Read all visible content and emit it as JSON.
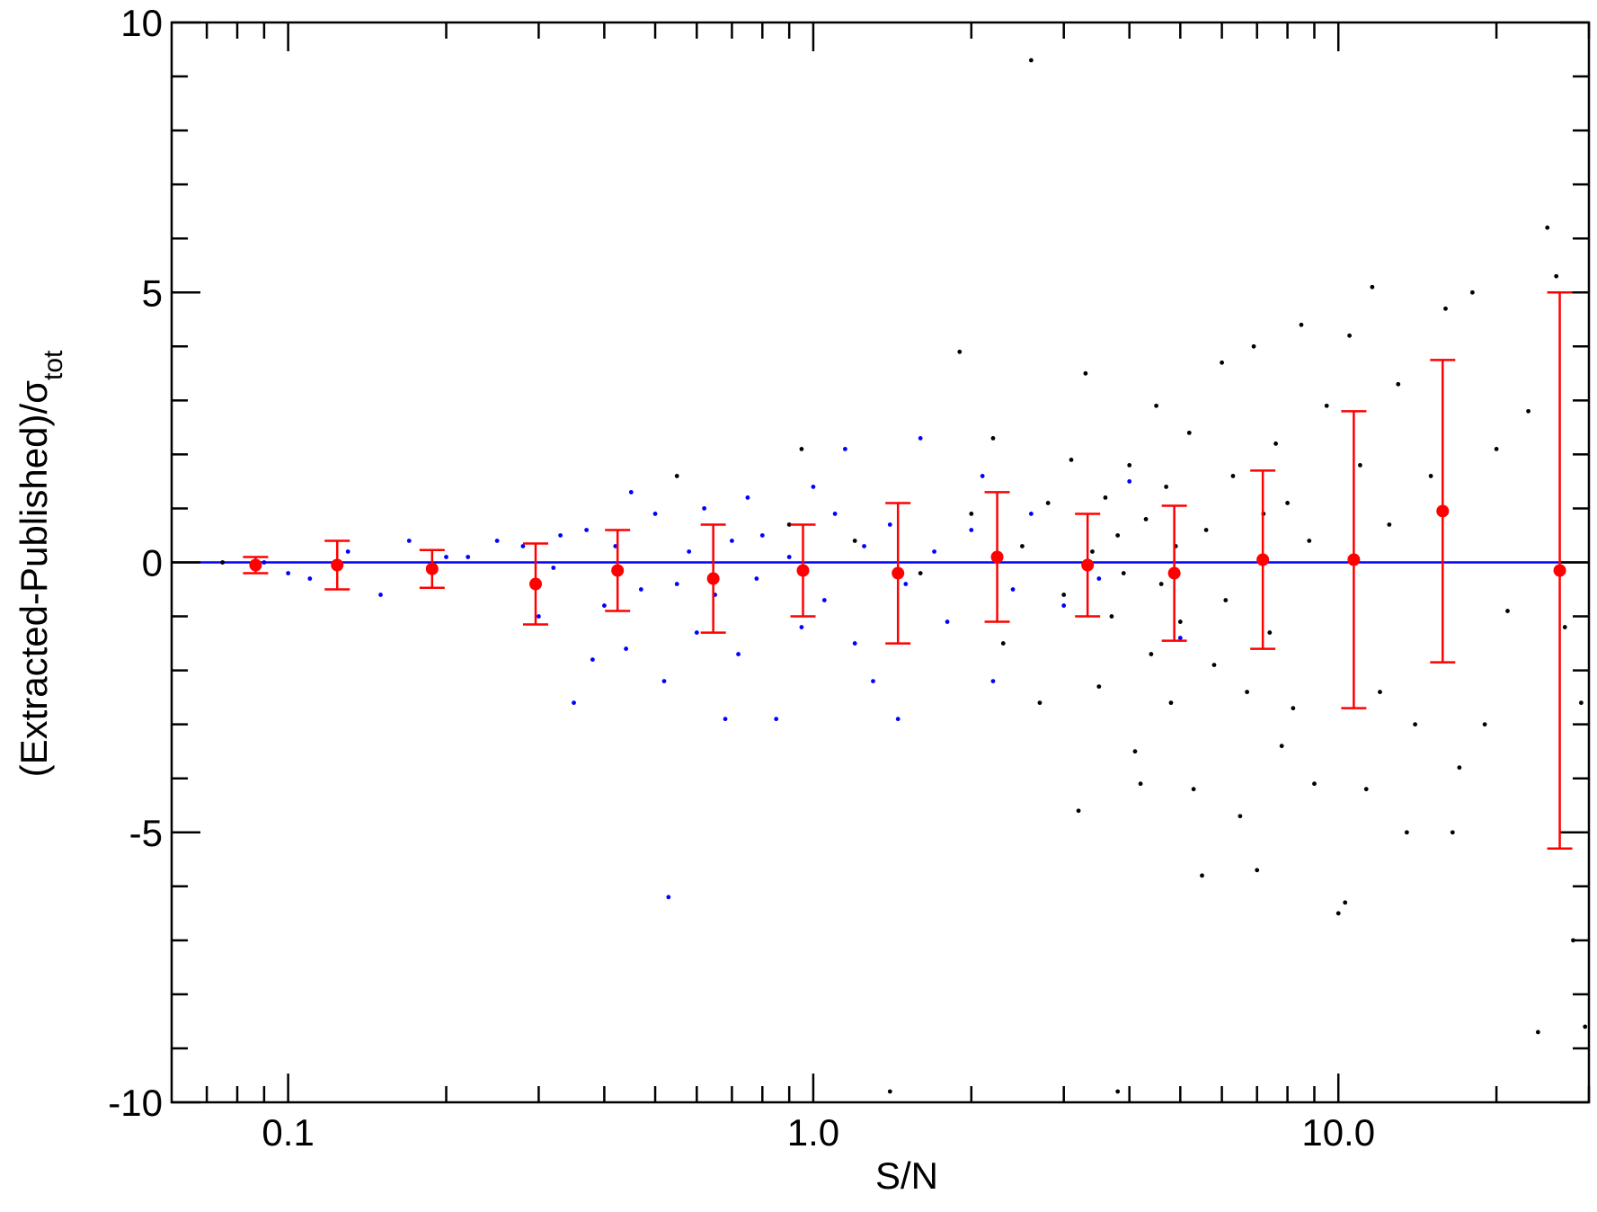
{
  "chart_data": {
    "type": "scatter",
    "xlabel": "S/N",
    "ylabel": "(Extracted-Published)/σ",
    "ylabel_subscript": "tot",
    "xscale": "log",
    "xlim": [
      0.06,
      30
    ],
    "ylim": [
      -10,
      10
    ],
    "xticks": [
      0.1,
      {
        "value": 1,
        "label": "1.0"
      },
      {
        "value": 10,
        "label": "10.0"
      }
    ],
    "xminor_ticks": [
      0.07,
      0.08,
      0.09,
      0.2,
      0.3,
      0.4,
      0.5,
      0.6,
      0.7,
      0.8,
      0.9,
      2,
      3,
      4,
      5,
      6,
      7,
      8,
      9,
      20,
      30
    ],
    "yticks": [
      -10,
      -5,
      0,
      5,
      10
    ],
    "yminor_ticks": [
      -9,
      -8,
      -7,
      -6,
      -4,
      -3,
      -2,
      -1,
      1,
      2,
      3,
      4,
      6,
      7,
      8,
      9
    ],
    "reference_line": {
      "value": 0,
      "color": "#0000ff"
    },
    "series": [
      {
        "color": "#0000ff",
        "x": [
          0.1,
          0.11,
          0.13,
          0.15,
          0.2,
          0.25,
          0.28,
          0.3,
          0.33,
          0.35,
          0.37,
          0.38,
          0.4,
          0.42,
          0.45,
          0.47,
          0.5,
          0.52,
          0.53,
          0.55,
          0.58,
          0.6,
          0.62,
          0.65,
          0.68,
          0.7,
          0.72,
          0.75,
          0.78,
          0.8,
          0.85,
          0.9,
          0.95,
          1.0,
          1.05,
          1.1,
          1.15,
          1.2,
          1.25,
          1.3,
          1.4,
          1.45,
          1.5,
          1.6,
          1.7,
          1.8,
          2.0,
          2.1,
          2.2,
          2.4,
          2.6,
          3.0,
          3.5,
          4.0,
          5.0,
          0.09,
          0.17,
          0.22,
          0.32,
          0.44
        ],
        "y": [
          -0.2,
          -0.3,
          0.2,
          -0.6,
          0.1,
          0.4,
          0.3,
          -1.0,
          0.5,
          -2.6,
          0.6,
          -1.8,
          -0.8,
          0.3,
          1.3,
          -0.5,
          0.9,
          -2.2,
          -6.2,
          -0.4,
          0.2,
          -1.3,
          1.0,
          -0.6,
          -2.9,
          0.4,
          -1.7,
          1.2,
          -0.3,
          0.5,
          -2.9,
          0.1,
          -1.2,
          1.4,
          -0.7,
          0.9,
          2.1,
          -1.5,
          0.3,
          -2.2,
          0.7,
          -2.9,
          -0.4,
          2.3,
          0.2,
          -1.1,
          0.6,
          1.6,
          -2.2,
          -0.5,
          0.9,
          -0.8,
          -0.3,
          1.5,
          -1.4,
          0.0,
          0.4,
          0.1,
          -0.1,
          -1.6
        ]
      },
      {
        "color": "#000000",
        "x": [
          0.075,
          0.55,
          0.9,
          0.95,
          1.2,
          1.6,
          1.9,
          2.0,
          2.2,
          2.3,
          2.5,
          2.6,
          2.7,
          2.8,
          3.0,
          3.1,
          3.2,
          3.3,
          3.4,
          3.5,
          3.6,
          3.7,
          3.8,
          3.9,
          4.0,
          4.1,
          4.2,
          4.3,
          4.4,
          4.5,
          4.6,
          4.7,
          4.8,
          4.9,
          5.0,
          5.2,
          5.3,
          5.5,
          5.6,
          5.8,
          6.0,
          6.1,
          6.3,
          6.5,
          6.7,
          6.9,
          7.0,
          7.2,
          7.4,
          7.6,
          7.8,
          8.0,
          8.2,
          8.5,
          8.8,
          9.0,
          9.5,
          10.0,
          10.3,
          10.5,
          11.0,
          11.3,
          11.6,
          12.0,
          12.5,
          13.0,
          13.5,
          14.0,
          15.0,
          16.0,
          16.5,
          17.0,
          18.0,
          19.0,
          20.0,
          21.0,
          23.0,
          24.0,
          25.0,
          26.0,
          27.0,
          28.0,
          29.0,
          29.5,
          1.4,
          3.8
        ],
        "y": [
          0.0,
          1.6,
          0.7,
          2.1,
          0.4,
          -0.2,
          3.9,
          0.9,
          2.3,
          -1.5,
          0.3,
          9.3,
          -2.6,
          1.1,
          -0.6,
          1.9,
          -4.6,
          3.5,
          0.2,
          -2.3,
          1.2,
          -1.0,
          0.5,
          -0.2,
          1.8,
          -3.5,
          -4.1,
          0.8,
          -1.7,
          2.9,
          -0.4,
          1.4,
          -2.6,
          0.3,
          -1.1,
          2.4,
          -4.2,
          -5.8,
          0.6,
          -1.9,
          3.7,
          -0.7,
          1.6,
          -4.7,
          -2.4,
          4.0,
          -5.7,
          0.9,
          -1.3,
          2.2,
          -3.4,
          1.1,
          -2.7,
          4.4,
          0.4,
          -4.1,
          2.9,
          -6.5,
          -6.3,
          4.2,
          1.8,
          -4.2,
          5.1,
          -2.4,
          0.7,
          3.3,
          -5.0,
          -3.0,
          1.6,
          4.7,
          -5.0,
          -3.8,
          5.0,
          -3.0,
          2.1,
          -0.9,
          2.8,
          -8.7,
          6.2,
          5.3,
          -1.2,
          -7.0,
          -2.6,
          -8.6,
          -9.8,
          -9.8
        ]
      },
      {
        "color": "#ff0000",
        "x": [
          0.0867,
          0.124,
          0.188,
          0.296,
          0.424,
          0.645,
          0.956,
          1.45,
          2.24,
          3.33,
          4.87,
          7.18,
          10.7,
          15.8,
          26.4
        ],
        "y": [
          -0.05,
          -0.05,
          -0.12,
          -0.4,
          -0.15,
          -0.3,
          -0.15,
          -0.2,
          0.1,
          -0.05,
          -0.2,
          0.05,
          0.05,
          0.95,
          -0.15
        ],
        "errors": [
          0.15,
          0.45,
          0.35,
          0.75,
          0.75,
          1.0,
          0.85,
          1.3,
          1.2,
          0.95,
          1.25,
          1.65,
          2.75,
          2.8,
          5.15
        ]
      }
    ]
  }
}
